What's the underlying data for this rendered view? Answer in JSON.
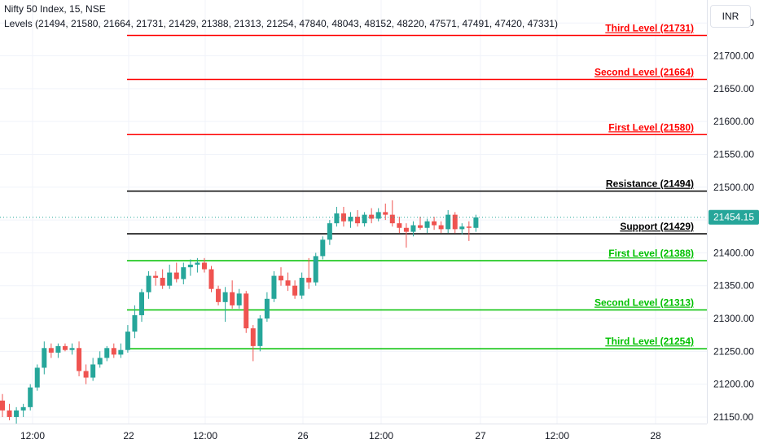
{
  "header": {
    "line1": "Nifty 50 Index, 15, NSE",
    "line2": "Levels (21494, 21580, 21664, 21731, 21429, 21388, 21313, 21254, 47840, 48043, 48152, 48220, 47571, 47491, 47420, 47331)"
  },
  "currency": "INR",
  "colors": {
    "up": "#26a69a",
    "down": "#ef5350",
    "resistance_levels": "#ff0000",
    "support_levels": "#00c000",
    "pivot_levels": "#000000",
    "price_tag": "#26a69a"
  },
  "chart_data": {
    "type": "candlestick",
    "ylim": [
      21140,
      21785
    ],
    "y_ticks": [
      21150,
      21200,
      21250,
      21300,
      21350,
      21400,
      21450,
      21500,
      21550,
      21600,
      21650,
      21700,
      21750
    ],
    "x_ticks": [
      "12:00",
      "22",
      "12:00",
      "26",
      "12:00",
      "27",
      "12:00",
      "28"
    ],
    "current_price": 21454.15,
    "current_price_label": "21454.15",
    "levels": [
      {
        "label": "Third Level (21731)",
        "value": 21731,
        "kind": "resistance"
      },
      {
        "label": "Second Level (21664)",
        "value": 21664,
        "kind": "resistance"
      },
      {
        "label": "First Level (21580)",
        "value": 21580,
        "kind": "resistance"
      },
      {
        "label": "Resistance (21494)",
        "value": 21494,
        "kind": "pivot"
      },
      {
        "label": "Support (21429)",
        "value": 21429,
        "kind": "pivot"
      },
      {
        "label": "First Level (21388)",
        "value": 21388,
        "kind": "support"
      },
      {
        "label": "Second Level (21313)",
        "value": 21313,
        "kind": "support"
      },
      {
        "label": "Third Level (21254)",
        "value": 21254,
        "kind": "support"
      }
    ],
    "candles": [
      [
        21175,
        21185,
        21150,
        21160
      ],
      [
        21160,
        21170,
        21145,
        21150
      ],
      [
        21150,
        21165,
        21140,
        21160
      ],
      [
        21160,
        21170,
        21150,
        21165
      ],
      [
        21165,
        21200,
        21160,
        21195
      ],
      [
        21195,
        21230,
        21190,
        21225
      ],
      [
        21225,
        21265,
        21215,
        21255
      ],
      [
        21255,
        21262,
        21240,
        21248
      ],
      [
        21248,
        21262,
        21240,
        21258
      ],
      [
        21258,
        21262,
        21250,
        21252
      ],
      [
        21252,
        21262,
        21245,
        21255
      ],
      [
        21255,
        21265,
        21212,
        21220
      ],
      [
        21220,
        21230,
        21200,
        21210
      ],
      [
        21210,
        21240,
        21205,
        21230
      ],
      [
        21230,
        21250,
        21225,
        21240
      ],
      [
        21240,
        21258,
        21235,
        21255
      ],
      [
        21255,
        21262,
        21240,
        21245
      ],
      [
        21245,
        21262,
        21240,
        21252
      ],
      [
        21252,
        21290,
        21248,
        21280
      ],
      [
        21280,
        21320,
        21270,
        21305
      ],
      [
        21305,
        21345,
        21295,
        21340
      ],
      [
        21340,
        21372,
        21330,
        21365
      ],
      [
        21365,
        21372,
        21350,
        21362
      ],
      [
        21362,
        21375,
        21345,
        21350
      ],
      [
        21350,
        21382,
        21345,
        21370
      ],
      [
        21370,
        21385,
        21355,
        21360
      ],
      [
        21360,
        21385,
        21352,
        21378
      ],
      [
        21378,
        21390,
        21365,
        21382
      ],
      [
        21382,
        21392,
        21370,
        21385
      ],
      [
        21385,
        21392,
        21370,
        21375
      ],
      [
        21375,
        21380,
        21340,
        21345
      ],
      [
        21345,
        21350,
        21320,
        21325
      ],
      [
        21325,
        21348,
        21295,
        21340
      ],
      [
        21340,
        21358,
        21315,
        21320
      ],
      [
        21320,
        21345,
        21315,
        21338
      ],
      [
        21338,
        21342,
        21278,
        21285
      ],
      [
        21285,
        21290,
        21235,
        21258
      ],
      [
        21258,
        21305,
        21250,
        21300
      ],
      [
        21300,
        21340,
        21295,
        21330
      ],
      [
        21330,
        21372,
        21325,
        21365
      ],
      [
        21365,
        21378,
        21350,
        21358
      ],
      [
        21358,
        21370,
        21342,
        21350
      ],
      [
        21350,
        21358,
        21330,
        21335
      ],
      [
        21335,
        21370,
        21330,
        21362
      ],
      [
        21362,
        21392,
        21345,
        21355
      ],
      [
        21355,
        21400,
        21350,
        21395
      ],
      [
        21395,
        21425,
        21390,
        21420
      ],
      [
        21420,
        21450,
        21412,
        21445
      ],
      [
        21445,
        21470,
        21440,
        21460
      ],
      [
        21460,
        21470,
        21440,
        21448
      ],
      [
        21448,
        21462,
        21438,
        21455
      ],
      [
        21455,
        21465,
        21440,
        21445
      ],
      [
        21445,
        21462,
        21440,
        21458
      ],
      [
        21458,
        21468,
        21445,
        21452
      ],
      [
        21452,
        21468,
        21448,
        21462
      ],
      [
        21462,
        21475,
        21450,
        21458
      ],
      [
        21458,
        21480,
        21440,
        21445
      ],
      [
        21445,
        21455,
        21430,
        21438
      ],
      [
        21438,
        21445,
        21408,
        21432
      ],
      [
        21432,
        21448,
        21425,
        21442
      ],
      [
        21442,
        21455,
        21435,
        21438
      ],
      [
        21438,
        21452,
        21430,
        21448
      ],
      [
        21448,
        21455,
        21435,
        21442
      ],
      [
        21442,
        21448,
        21430,
        21436
      ],
      [
        21436,
        21465,
        21430,
        21458
      ],
      [
        21458,
        21462,
        21430,
        21436
      ],
      [
        21436,
        21445,
        21428,
        21440
      ],
      [
        21440,
        21448,
        21418,
        21438
      ],
      [
        21438,
        21458,
        21432,
        21454
      ]
    ]
  }
}
